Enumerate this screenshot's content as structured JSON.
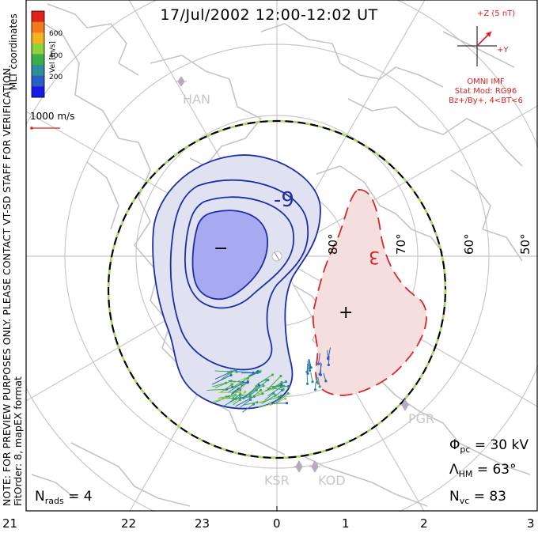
{
  "title": "17/Jul/2002 12:00-12:02 UT",
  "coordinates_label": "MLT coordinates",
  "vel_legend": {
    "axis_label": "Vel [m/s]",
    "ticks": [
      "600",
      "400",
      "200"
    ],
    "colors": [
      "#e2231a",
      "#f07a1c",
      "#f3b01f",
      "#8fd13a",
      "#3bb04a",
      "#2b8fa0",
      "#2b5fc0",
      "#1a1ae6"
    ]
  },
  "vector_scale": {
    "label": "1000 m/s",
    "color": "#e0201c"
  },
  "imf": {
    "z_label": "+Z (5 nT)",
    "y_label": "+Y",
    "source": "OMNI IMF",
    "stat_mod": "Stat Mod: RG96",
    "condition": "Bz+/By+, 4<BT<6",
    "color": "#e0201c"
  },
  "latitude_labels": [
    "80°",
    "70°",
    "60°",
    "50°"
  ],
  "contours": {
    "negative_label": "-9",
    "positive_label": "3",
    "negative_marker": "−",
    "positive_marker": "+",
    "negative_color": "#1c2fa8",
    "negative_fill": "#e1e2f1",
    "negative_inner_fill": "#a7aaf0",
    "positive_color": "#d8282a",
    "positive_fill": "#f5dede"
  },
  "stations": [
    "HAN",
    "PGR",
    "KSR",
    "KOD"
  ],
  "stats": {
    "phi_symbol": "Φ",
    "phi_sub": "pc",
    "phi_value": "= 30 kV",
    "lambda_symbol": "Λ",
    "lambda_sub": "HM",
    "lambda_value": "= 63°",
    "nvc_symbol": "N",
    "nvc_sub": "vc",
    "nvc_value": "= 83",
    "nrads_symbol": "N",
    "nrads_sub": "rads",
    "nrads_value": "= 4"
  },
  "note_lines": [
    "NOTE: FOR PREVIEW PURPOSES ONLY. PLEASE CONTACT VT-SD STAFF FOR VERIFICATION.",
    "FitOrder: 8, mapEX format"
  ],
  "mlt_ticks": [
    "21",
    "22",
    "23",
    "0",
    "1",
    "2",
    "3"
  ]
}
